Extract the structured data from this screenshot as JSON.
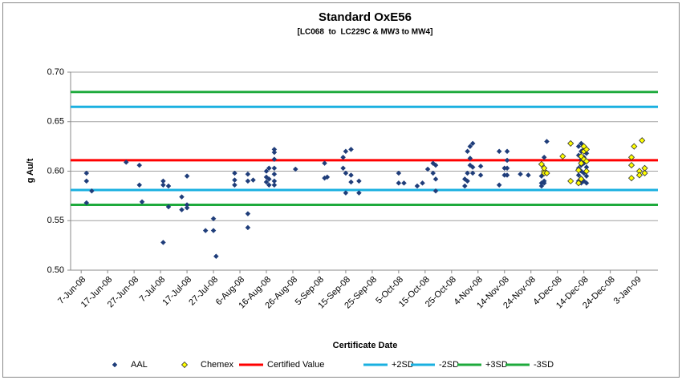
{
  "chart_data": {
    "type": "scatter",
    "title": "Standard OxE56",
    "subtitle": "[LC068  to  LC229C & MW3 to MW4]",
    "y_label": "g Au/t",
    "x_label": "Certificate Date",
    "ylim": [
      0.5,
      0.7
    ],
    "yticks": [
      {
        "value": 0.5,
        "label": "0.50"
      },
      {
        "value": 0.55,
        "label": "0.55"
      },
      {
        "value": 0.6,
        "label": "0.60"
      },
      {
        "value": 0.65,
        "label": "0.65"
      },
      {
        "value": 0.7,
        "label": "0.70"
      }
    ],
    "xlim": [
      "2008-06-03",
      "2009-01-11"
    ],
    "xticks": [
      {
        "value": "2008-06-07",
        "label": "7-Jun-08"
      },
      {
        "value": "2008-06-17",
        "label": "17-Jun-08"
      },
      {
        "value": "2008-06-27",
        "label": "27-Jun-08"
      },
      {
        "value": "2008-07-07",
        "label": "7-Jul-08"
      },
      {
        "value": "2008-07-17",
        "label": "17-Jul-08"
      },
      {
        "value": "2008-07-27",
        "label": "27-Jul-08"
      },
      {
        "value": "2008-08-06",
        "label": "6-Aug-08"
      },
      {
        "value": "2008-08-16",
        "label": "16-Aug-08"
      },
      {
        "value": "2008-08-26",
        "label": "26-Aug-08"
      },
      {
        "value": "2008-09-05",
        "label": "5-Sep-08"
      },
      {
        "value": "2008-09-15",
        "label": "15-Sep-08"
      },
      {
        "value": "2008-09-25",
        "label": "25-Sep-08"
      },
      {
        "value": "2008-10-05",
        "label": "5-Oct-08"
      },
      {
        "value": "2008-10-15",
        "label": "15-Oct-08"
      },
      {
        "value": "2008-10-25",
        "label": "25-Oct-08"
      },
      {
        "value": "2008-11-04",
        "label": "4-Nov-08"
      },
      {
        "value": "2008-11-14",
        "label": "14-Nov-08"
      },
      {
        "value": "2008-11-24",
        "label": "24-Nov-08"
      },
      {
        "value": "2008-12-04",
        "label": "4-Dec-08"
      },
      {
        "value": "2008-12-14",
        "label": "14-Dec-08"
      },
      {
        "value": "2008-12-24",
        "label": "24-Dec-08"
      },
      {
        "value": "2009-01-03",
        "label": "3-Jan-09"
      }
    ],
    "grid": true,
    "series": [
      {
        "name": "AAL",
        "color": "#1f3d7a",
        "marker": "diamond",
        "x": [
          "2008-06-09",
          "2008-06-09",
          "2008-06-09",
          "2008-06-11",
          "2008-06-24",
          "2008-06-29",
          "2008-06-29",
          "2008-06-30",
          "2008-07-08",
          "2008-07-08",
          "2008-07-08",
          "2008-07-10",
          "2008-07-10",
          "2008-07-15",
          "2008-07-15",
          "2008-07-17",
          "2008-07-17",
          "2008-07-17",
          "2008-07-24",
          "2008-07-27",
          "2008-07-27",
          "2008-07-28",
          "2008-08-04",
          "2008-08-04",
          "2008-08-04",
          "2008-08-09",
          "2008-08-09",
          "2008-08-09",
          "2008-08-09",
          "2008-08-11",
          "2008-08-16",
          "2008-08-16",
          "2008-08-16",
          "2008-08-17",
          "2008-08-17",
          "2008-08-17",
          "2008-08-19",
          "2008-08-19",
          "2008-08-19",
          "2008-08-19",
          "2008-08-19",
          "2008-08-19",
          "2008-08-19",
          "2008-08-27",
          "2008-09-07",
          "2008-09-07",
          "2008-09-08",
          "2008-09-14",
          "2008-09-14",
          "2008-09-15",
          "2008-09-15",
          "2008-09-15",
          "2008-09-17",
          "2008-09-17",
          "2008-09-17",
          "2008-09-20",
          "2008-09-20",
          "2008-10-05",
          "2008-10-05",
          "2008-10-07",
          "2008-10-12",
          "2008-10-14",
          "2008-10-16",
          "2008-10-18",
          "2008-10-18",
          "2008-10-19",
          "2008-10-19",
          "2008-10-19",
          "2008-10-30",
          "2008-10-30",
          "2008-10-31",
          "2008-10-31",
          "2008-10-31",
          "2008-11-01",
          "2008-11-01",
          "2008-11-01",
          "2008-11-02",
          "2008-11-02",
          "2008-11-02",
          "2008-11-05",
          "2008-11-05",
          "2008-11-12",
          "2008-11-12",
          "2008-11-14",
          "2008-11-14",
          "2008-11-15",
          "2008-11-15",
          "2008-11-15",
          "2008-11-15",
          "2008-11-20",
          "2008-11-23",
          "2008-11-28",
          "2008-11-28",
          "2008-11-28",
          "2008-11-29",
          "2008-11-29",
          "2008-11-29",
          "2008-11-29",
          "2008-11-30",
          "2008-12-12",
          "2008-12-12",
          "2008-12-12",
          "2008-12-12",
          "2008-12-12",
          "2008-12-13",
          "2008-12-13",
          "2008-12-13",
          "2008-12-13",
          "2008-12-13",
          "2008-12-13",
          "2008-12-13",
          "2008-12-14",
          "2008-12-14",
          "2008-12-14",
          "2008-12-14",
          "2008-12-14",
          "2008-12-15",
          "2008-12-15",
          "2008-12-15",
          "2008-12-15"
        ],
        "values": [
          0.598,
          0.59,
          0.568,
          0.58,
          0.609,
          0.606,
          0.586,
          0.569,
          0.59,
          0.586,
          0.528,
          0.585,
          0.564,
          0.574,
          0.561,
          0.595,
          0.566,
          0.563,
          0.54,
          0.552,
          0.54,
          0.514,
          0.598,
          0.591,
          0.586,
          0.597,
          0.59,
          0.557,
          0.543,
          0.591,
          0.6,
          0.594,
          0.589,
          0.603,
          0.586,
          0.592,
          0.622,
          0.619,
          0.612,
          0.603,
          0.597,
          0.59,
          0.586,
          0.602,
          0.608,
          0.593,
          0.594,
          0.614,
          0.603,
          0.62,
          0.598,
          0.578,
          0.622,
          0.596,
          0.589,
          0.59,
          0.578,
          0.598,
          0.588,
          0.588,
          0.585,
          0.588,
          0.602,
          0.608,
          0.598,
          0.606,
          0.592,
          0.58,
          0.592,
          0.585,
          0.62,
          0.598,
          0.59,
          0.625,
          0.613,
          0.606,
          0.628,
          0.604,
          0.598,
          0.605,
          0.596,
          0.62,
          0.586,
          0.603,
          0.596,
          0.62,
          0.611,
          0.603,
          0.596,
          0.597,
          0.596,
          0.595,
          0.588,
          0.585,
          0.614,
          0.598,
          0.59,
          0.588,
          0.63,
          0.625,
          0.616,
          0.603,
          0.596,
          0.59,
          0.628,
          0.62,
          0.612,
          0.606,
          0.6,
          0.593,
          0.588,
          0.622,
          0.614,
          0.608,
          0.598,
          0.59,
          0.618,
          0.604,
          0.595,
          0.588
        ]
      },
      {
        "name": "Chemex",
        "color": "#ffff00",
        "marker": "diamond-outline",
        "x": [
          "2008-11-28",
          "2008-11-29",
          "2008-11-29",
          "2008-11-29",
          "2008-11-30",
          "2008-12-06",
          "2008-12-09",
          "2008-12-09",
          "2008-12-12",
          "2008-12-12",
          "2008-12-13",
          "2008-12-13",
          "2008-12-13",
          "2008-12-14",
          "2008-12-14",
          "2008-12-14",
          "2008-12-15",
          "2008-12-15",
          "2008-12-15",
          "2009-01-01",
          "2009-01-01",
          "2009-01-01",
          "2009-01-02",
          "2009-01-04",
          "2009-01-04",
          "2009-01-05",
          "2009-01-06",
          "2009-01-06"
        ],
        "values": [
          0.607,
          0.6,
          0.598,
          0.603,
          0.598,
          0.615,
          0.628,
          0.59,
          0.601,
          0.588,
          0.615,
          0.608,
          0.592,
          0.625,
          0.62,
          0.612,
          0.622,
          0.61,
          0.6,
          0.614,
          0.606,
          0.593,
          0.625,
          0.6,
          0.596,
          0.631,
          0.603,
          0.598
        ]
      }
    ],
    "reference_lines": [
      {
        "name": "Certified Value",
        "color": "#ff0000",
        "value": 0.611
      },
      {
        "name": "+2SD",
        "color": "#1ab0e0",
        "value": 0.665
      },
      {
        "name": "-2SD",
        "color": "#1ab0e0",
        "value": 0.581
      },
      {
        "name": "+3SD",
        "color": "#1eaa3c",
        "value": 0.68
      },
      {
        "name": "-3SD",
        "color": "#1eaa3c",
        "value": 0.566
      }
    ],
    "legend": "bottom"
  }
}
